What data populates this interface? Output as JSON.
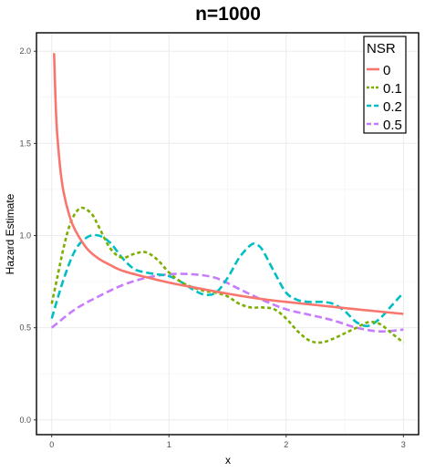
{
  "chart_data": {
    "type": "line",
    "title": "n=1000",
    "xlabel": "x",
    "ylabel": "Hazard Estimate",
    "xlim": [
      -0.13,
      3.13
    ],
    "ylim": [
      -0.08,
      2.1
    ],
    "x_ticks": [
      "0",
      "1",
      "2",
      "3"
    ],
    "y_ticks": [
      "0.0",
      "0.5",
      "1.0",
      "1.5",
      "2.0"
    ],
    "grid": true,
    "legend": {
      "title": "NSR",
      "placement": "top-right"
    },
    "series": [
      {
        "name": "0",
        "color": "#f8766d",
        "dash": "solid",
        "x": [
          0.02,
          0.04,
          0.07,
          0.1,
          0.15,
          0.2,
          0.3,
          0.4,
          0.5,
          0.6,
          0.8,
          1.0,
          1.2,
          1.5,
          1.8,
          2.0,
          2.3,
          2.6,
          3.0
        ],
        "y": [
          1.99,
          1.62,
          1.38,
          1.24,
          1.11,
          1.03,
          0.93,
          0.875,
          0.84,
          0.81,
          0.775,
          0.745,
          0.72,
          0.685,
          0.655,
          0.64,
          0.62,
          0.6,
          0.575
        ]
      },
      {
        "name": "0.1",
        "color": "#7cae00",
        "dash": "4,3",
        "x": [
          0.0,
          0.05,
          0.1,
          0.15,
          0.2,
          0.25,
          0.3,
          0.35,
          0.4,
          0.5,
          0.6,
          0.7,
          0.8,
          0.9,
          1.0,
          1.1,
          1.2,
          1.3,
          1.4,
          1.5,
          1.6,
          1.7,
          1.8,
          1.9,
          2.0,
          2.1,
          2.2,
          2.3,
          2.4,
          2.5,
          2.6,
          2.7,
          2.8,
          2.9,
          3.0
        ],
        "y": [
          0.63,
          0.78,
          0.93,
          1.05,
          1.12,
          1.15,
          1.14,
          1.11,
          1.05,
          0.93,
          0.88,
          0.9,
          0.91,
          0.87,
          0.8,
          0.75,
          0.72,
          0.7,
          0.69,
          0.67,
          0.63,
          0.61,
          0.61,
          0.6,
          0.55,
          0.48,
          0.43,
          0.42,
          0.44,
          0.47,
          0.5,
          0.53,
          0.52,
          0.47,
          0.42
        ]
      },
      {
        "name": "0.2",
        "color": "#00bfc4",
        "dash": "8,4",
        "x": [
          0.0,
          0.1,
          0.2,
          0.3,
          0.4,
          0.5,
          0.6,
          0.7,
          0.8,
          0.9,
          1.0,
          1.1,
          1.2,
          1.3,
          1.4,
          1.5,
          1.6,
          1.7,
          1.75,
          1.8,
          1.9,
          2.0,
          2.1,
          2.2,
          2.3,
          2.4,
          2.5,
          2.6,
          2.7,
          2.8,
          2.9,
          3.0
        ],
        "y": [
          0.55,
          0.76,
          0.92,
          0.99,
          1.0,
          0.96,
          0.88,
          0.82,
          0.8,
          0.79,
          0.78,
          0.75,
          0.71,
          0.68,
          0.69,
          0.77,
          0.88,
          0.95,
          0.95,
          0.92,
          0.8,
          0.69,
          0.65,
          0.64,
          0.64,
          0.63,
          0.59,
          0.53,
          0.51,
          0.55,
          0.62,
          0.69
        ]
      },
      {
        "name": "0.5",
        "color": "#c77cff",
        "dash": "8,4",
        "x": [
          0.0,
          0.2,
          0.4,
          0.6,
          0.8,
          1.0,
          1.2,
          1.4,
          1.6,
          1.8,
          2.0,
          2.2,
          2.4,
          2.6,
          2.8,
          3.0
        ],
        "y": [
          0.5,
          0.6,
          0.67,
          0.73,
          0.77,
          0.79,
          0.79,
          0.77,
          0.71,
          0.65,
          0.6,
          0.57,
          0.54,
          0.5,
          0.48,
          0.49
        ]
      }
    ]
  }
}
